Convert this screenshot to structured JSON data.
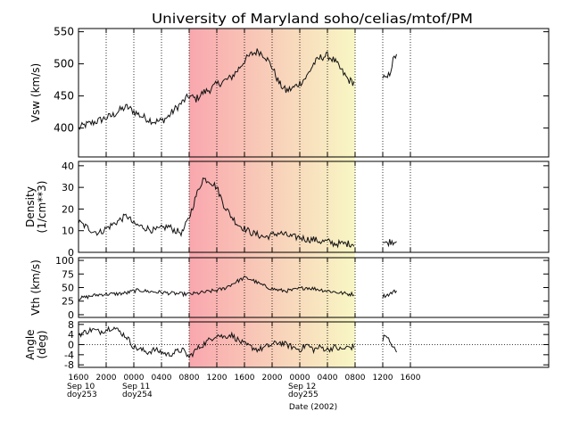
{
  "chart_data": {
    "type": "line",
    "title": "University of Maryland  soho/celias/mtof/PM",
    "xlabel": "Date (2002)",
    "x_unit": "hours since 2002-09-10 16:00 UT",
    "xlim": [
      0,
      68
    ],
    "x_ticks": [
      {
        "x": 0,
        "label": "1600",
        "sub": [
          "Sep 10",
          "doy253"
        ]
      },
      {
        "x": 4,
        "label": "2000"
      },
      {
        "x": 8,
        "label": "0000",
        "sub": [
          "Sep 11",
          "doy254"
        ]
      },
      {
        "x": 12,
        "label": "0400"
      },
      {
        "x": 16,
        "label": "0800"
      },
      {
        "x": 20,
        "label": "1200"
      },
      {
        "x": 24,
        "label": "1600"
      },
      {
        "x": 28,
        "label": "2000"
      },
      {
        "x": 32,
        "label": "0000",
        "sub": [
          "Sep 12",
          "doy255"
        ]
      },
      {
        "x": 36,
        "label": "0400"
      },
      {
        "x": 40,
        "label": "0800"
      },
      {
        "x": 44,
        "label": "1200"
      },
      {
        "x": 48,
        "label": "1600"
      }
    ],
    "shaded_interval": {
      "from": 16,
      "to": 40,
      "colors": [
        "#f9a7ae",
        "#f8f7c4"
      ]
    },
    "data_gap": [
      40,
      44
    ],
    "panels": [
      {
        "ylabel": "Vsw (km/s)",
        "ylim": [
          355,
          555
        ],
        "yticks": [
          400,
          450,
          500,
          550
        ],
        "series": {
          "name": "",
          "x": [
            0,
            1,
            2,
            3,
            4,
            5,
            6,
            7,
            8,
            9,
            10,
            11,
            12,
            13,
            14,
            15,
            16,
            17,
            18,
            19,
            20,
            21,
            22,
            23,
            24,
            25,
            26,
            27,
            28,
            29,
            30,
            31,
            32,
            33,
            34,
            35,
            36,
            37,
            38,
            39,
            40,
            44,
            44.5,
            45,
            45.5,
            46
          ],
          "y": [
            400,
            405,
            408,
            412,
            416,
            420,
            428,
            433,
            426,
            419,
            414,
            410,
            411,
            418,
            430,
            440,
            450,
            445,
            455,
            460,
            468,
            473,
            478,
            490,
            505,
            515,
            520,
            512,
            495,
            470,
            458,
            462,
            470,
            480,
            500,
            510,
            513,
            505,
            490,
            475,
            470,
            480,
            475,
            485,
            505,
            515
          ]
        }
      },
      {
        "ylabel": "Density (1/cm**3)",
        "ylim": [
          0,
          42
        ],
        "yticks": [
          0,
          10,
          20,
          30,
          40
        ],
        "series": {
          "name": "",
          "x": [
            0,
            1,
            2,
            3,
            4,
            5,
            6,
            7,
            8,
            9,
            10,
            11,
            12,
            13,
            14,
            15,
            16,
            17,
            18,
            19,
            20,
            21,
            22,
            23,
            24,
            25,
            26,
            27,
            28,
            29,
            30,
            31,
            32,
            33,
            34,
            35,
            36,
            37,
            38,
            39,
            40,
            44,
            44.5,
            45,
            45.5,
            46
          ],
          "y": [
            14,
            12,
            10,
            9,
            11,
            13,
            15,
            17,
            13,
            12,
            11,
            10,
            11,
            12,
            10,
            9,
            16,
            26,
            34,
            33,
            30,
            22,
            17,
            13,
            11,
            9,
            8,
            7,
            8,
            9,
            8,
            7,
            7,
            6,
            6,
            5,
            5,
            4,
            4,
            4,
            4,
            5,
            4,
            5,
            5,
            5
          ]
        }
      },
      {
        "ylabel": "Vth (km/s)",
        "ylim": [
          -5,
          105
        ],
        "yticks": [
          0,
          25,
          50,
          75,
          100
        ],
        "series": {
          "name": "",
          "x": [
            0,
            1,
            2,
            3,
            4,
            5,
            6,
            7,
            8,
            9,
            10,
            11,
            12,
            13,
            14,
            15,
            16,
            17,
            18,
            19,
            20,
            21,
            22,
            23,
            24,
            25,
            26,
            27,
            28,
            29,
            30,
            31,
            32,
            33,
            34,
            35,
            36,
            37,
            38,
            39,
            40,
            44,
            44.5,
            45,
            45.5,
            46
          ],
          "y": [
            30,
            32,
            35,
            37,
            38,
            38,
            39,
            40,
            44,
            45,
            43,
            42,
            41,
            40,
            39,
            38,
            38,
            39,
            41,
            43,
            45,
            48,
            55,
            62,
            68,
            65,
            58,
            52,
            48,
            45,
            44,
            45,
            48,
            50,
            48,
            46,
            44,
            42,
            40,
            38,
            38,
            34,
            36,
            38,
            42,
            44
          ]
        }
      },
      {
        "ylabel": "Angle (deg)",
        "ylim": [
          -9,
          9
        ],
        "yticks": [
          -8,
          -4,
          0,
          4,
          8
        ],
        "zero_line": 0,
        "series": {
          "name": "",
          "x": [
            0,
            1,
            2,
            3,
            4,
            5,
            6,
            7,
            8,
            9,
            10,
            11,
            12,
            13,
            14,
            15,
            16,
            17,
            18,
            19,
            20,
            21,
            22,
            23,
            24,
            25,
            26,
            27,
            28,
            29,
            30,
            31,
            32,
            33,
            34,
            35,
            36,
            37,
            38,
            39,
            40,
            44,
            44.5,
            45,
            45.5,
            46
          ],
          "y": [
            4,
            5,
            6,
            5,
            6,
            7,
            5,
            3,
            -1,
            -2,
            -3,
            -2,
            -3,
            -4,
            -3,
            -2,
            -5,
            -2,
            0,
            2,
            4,
            3,
            4,
            2,
            0,
            -1,
            -2,
            -1,
            0,
            1,
            0,
            -1,
            -2,
            0,
            -2,
            -1,
            -2,
            -1,
            -2,
            -1,
            -1,
            2,
            4,
            1,
            -1,
            -3
          ]
        }
      }
    ]
  }
}
